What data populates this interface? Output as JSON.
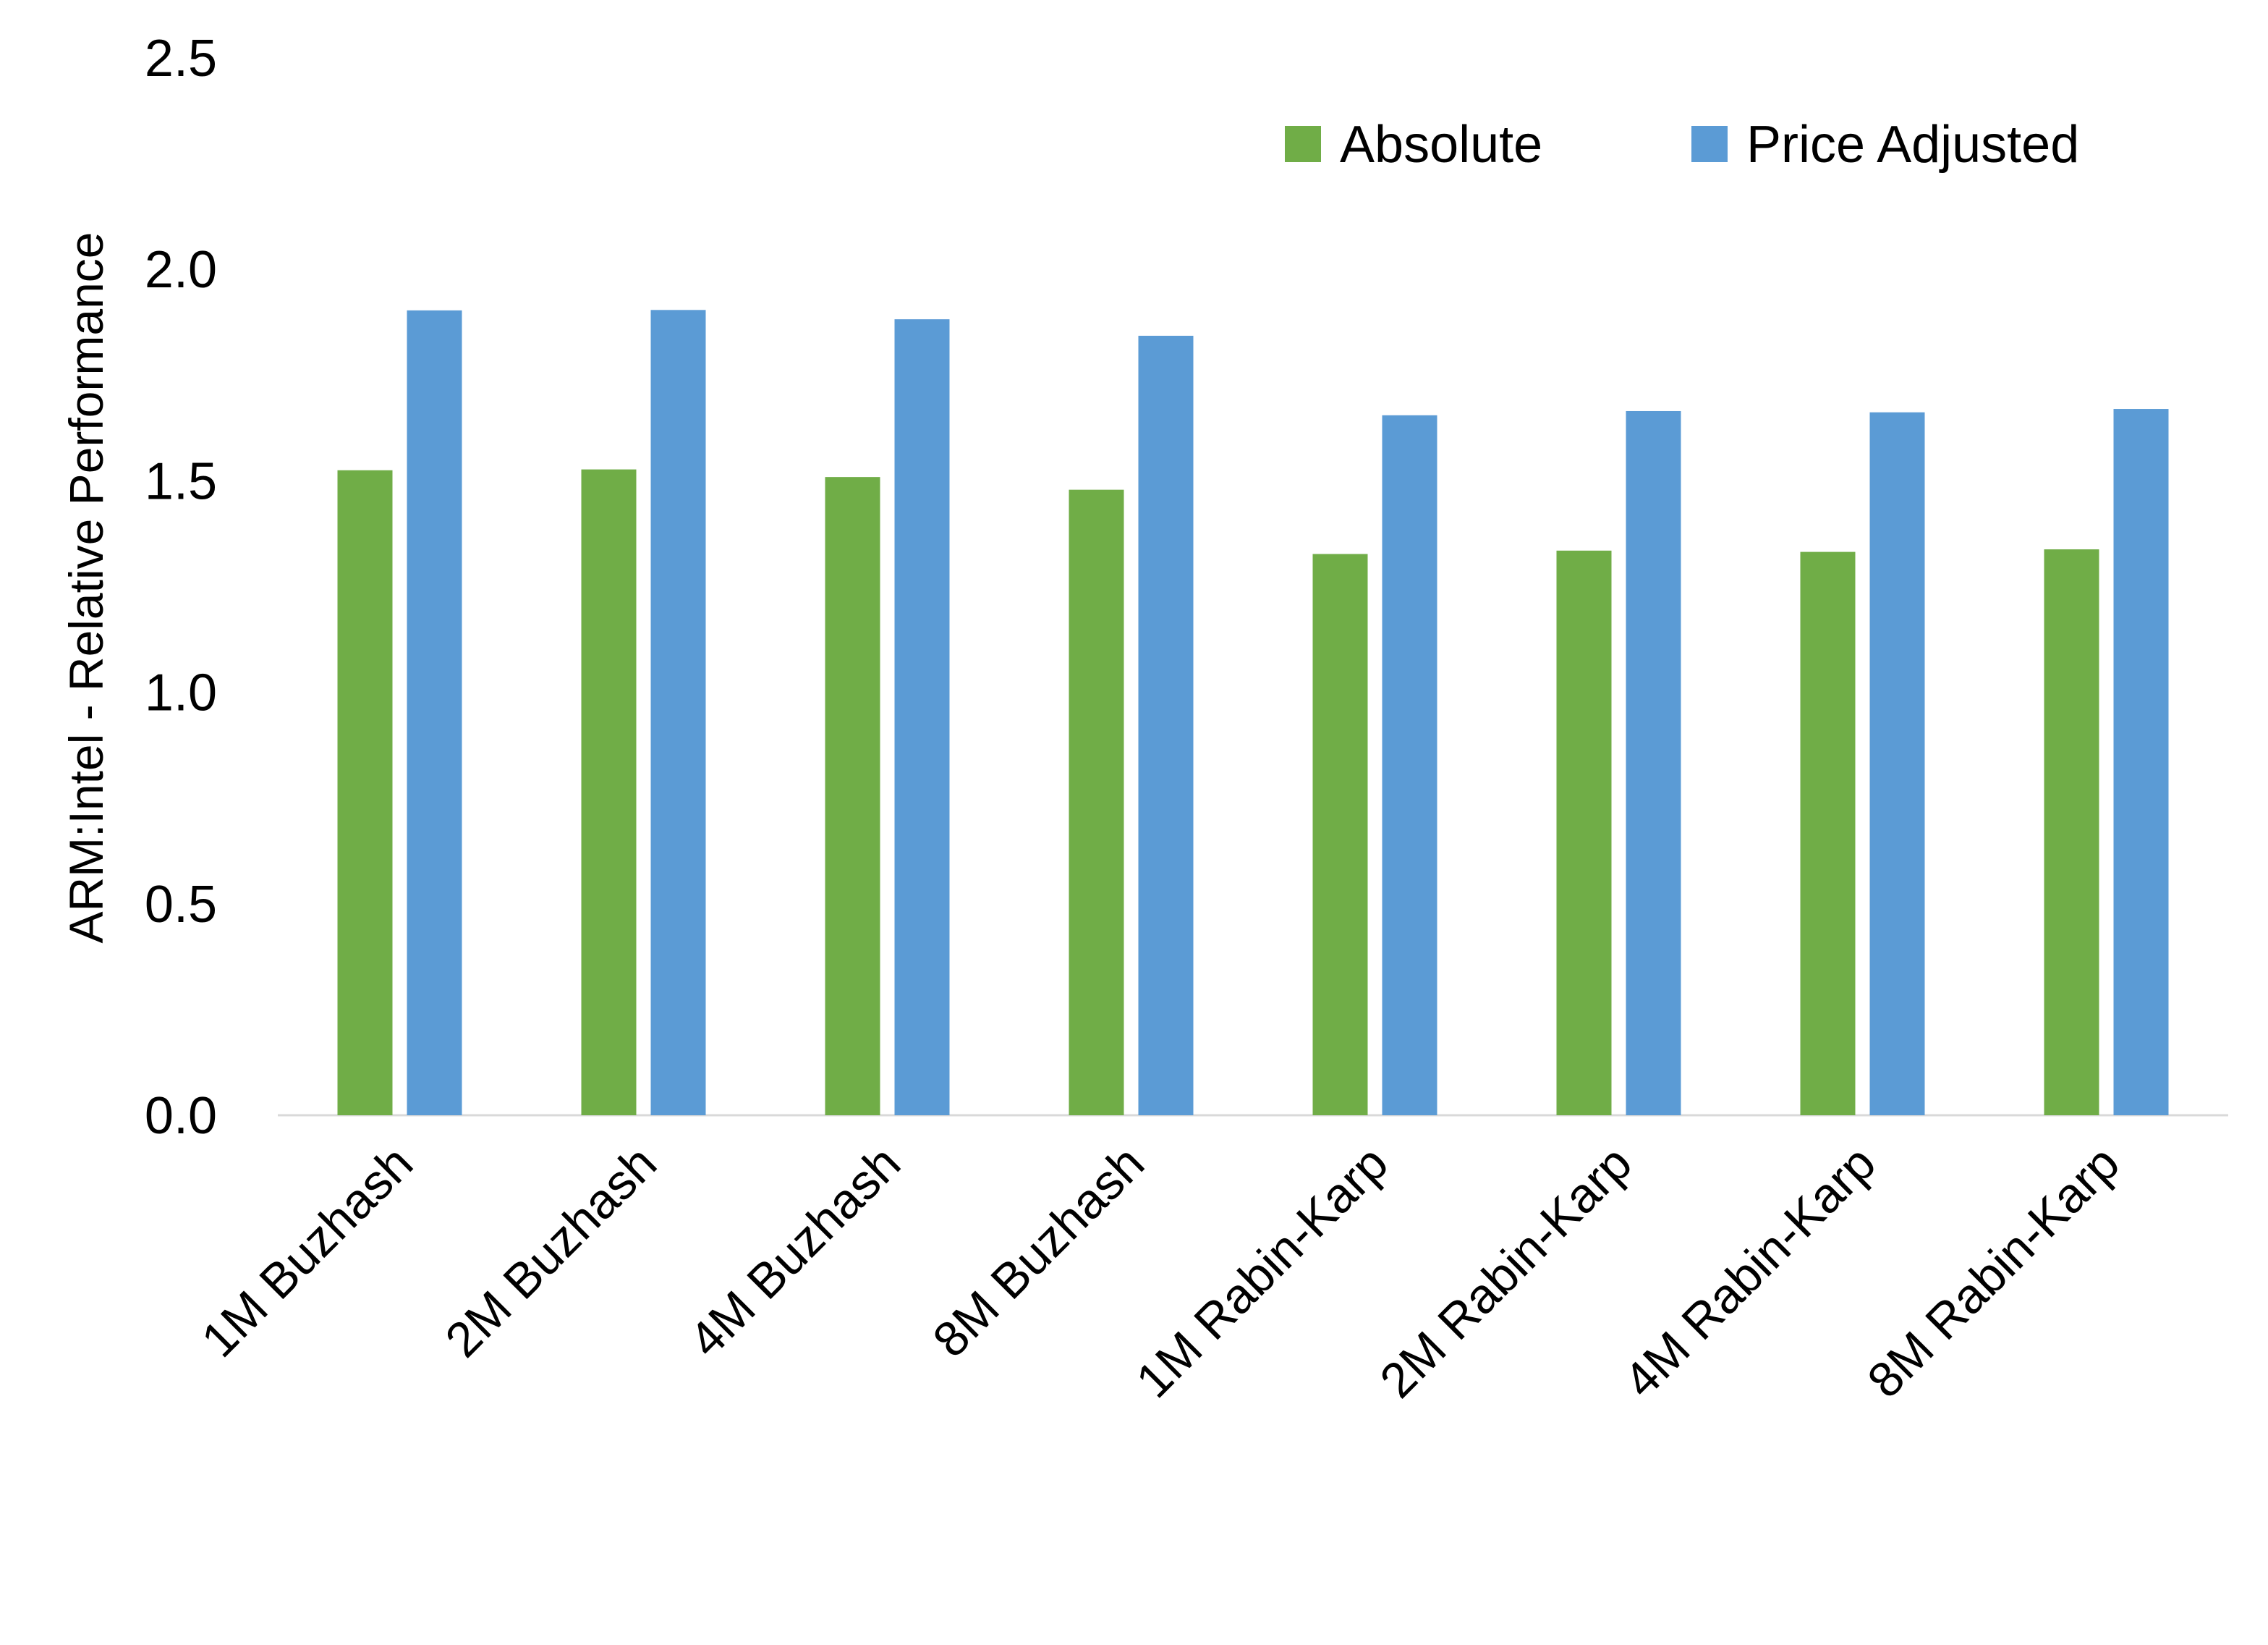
{
  "chart_data": {
    "type": "bar",
    "title": "",
    "xlabel": "",
    "ylabel": "ARM:Intel - Relative Performance",
    "ylim": [
      0,
      2.5
    ],
    "yticks": [
      "0.0",
      "0.5",
      "1.0",
      "1.5",
      "2.0",
      "2.5"
    ],
    "grid": false,
    "legend_position": "top-right",
    "categories": [
      "1M Buzhash",
      "2M Buzhash",
      "4M Buzhash",
      "8M Buzhash",
      "1M Rabin-Karp",
      "2M Rabin-Karp",
      "4M Rabin-Karp",
      "8M Rabin-Karp"
    ],
    "series": [
      {
        "name": "Absolute",
        "color": "#70AD47",
        "values": [
          1.525,
          1.527,
          1.509,
          1.479,
          1.327,
          1.335,
          1.332,
          1.338
        ]
      },
      {
        "name": "Price Adjusted",
        "color": "#5B9BD5",
        "values": [
          1.903,
          1.904,
          1.882,
          1.843,
          1.655,
          1.665,
          1.662,
          1.67
        ]
      }
    ]
  }
}
